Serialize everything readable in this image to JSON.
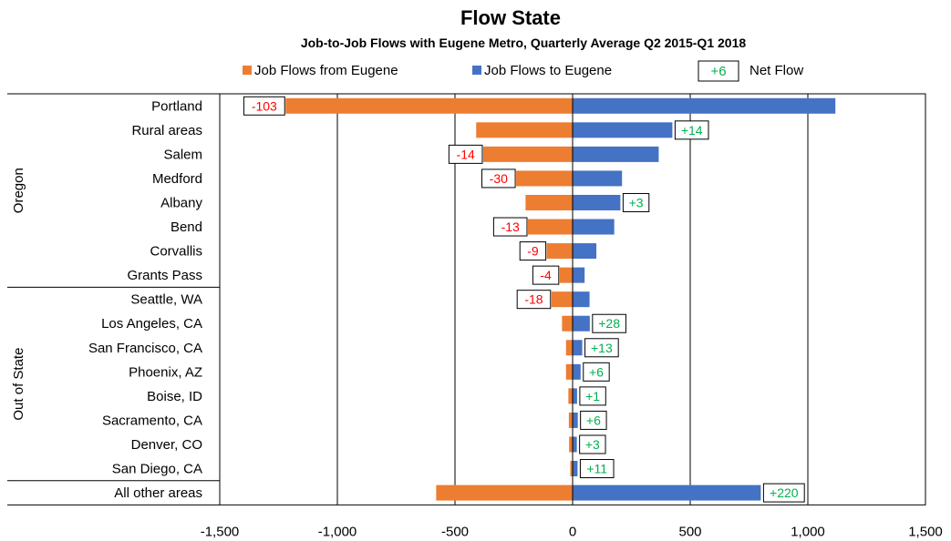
{
  "chart_data": {
    "type": "bar",
    "orientation": "horizontal",
    "title": "Flow State",
    "subtitle": "Job-to-Job  Flows with Eugene Metro, Quarterly Average Q2 2015-Q1 2018",
    "xlim": [
      -1500,
      1500
    ],
    "xticks": [
      -1500,
      -1000,
      -500,
      0,
      500,
      1000,
      1500
    ],
    "xtick_labels": [
      "-1,500",
      "-1,000",
      "-500",
      "0",
      "500",
      "1,000",
      "1,500"
    ],
    "grid": "vertical",
    "legend": {
      "placement": "top",
      "entries": [
        {
          "label": "Job Flows from Eugene",
          "color": "#ED7D31"
        },
        {
          "label": "Job Flows to Eugene",
          "color": "#4472C4"
        },
        {
          "label": "Net Flow",
          "sample": "+6",
          "color": "#00B050"
        }
      ]
    },
    "groups": [
      {
        "name": "Oregon",
        "categories": [
          "Portland",
          "Rural areas",
          "Salem",
          "Medford",
          "Albany",
          "Bend",
          "Corvallis",
          "Grants Pass"
        ]
      },
      {
        "name": "Out of State",
        "categories": [
          "Seattle, WA",
          "Los Angeles, CA",
          "San Francisco, CA",
          "Phoenix, AZ",
          "Boise, ID",
          "Sacramento, CA",
          "Denver, CO",
          "San Diego, CA"
        ]
      },
      {
        "name": "",
        "categories": [
          "All other areas"
        ]
      }
    ],
    "categories": [
      "Portland",
      "Rural areas",
      "Salem",
      "Medford",
      "Albany",
      "Bend",
      "Corvallis",
      "Grants Pass",
      "Seattle, WA",
      "Los Angeles, CA",
      "San Francisco, CA",
      "Phoenix, AZ",
      "Boise, ID",
      "Sacramento, CA",
      "Denver, CO",
      "San Diego, CA",
      "All other areas"
    ],
    "series": [
      {
        "name": "Job Flows from Eugene",
        "color": "#ED7D31",
        "values": [
          -1220,
          -410,
          -380,
          -240,
          -200,
          -190,
          -110,
          -55,
          -90,
          -45,
          -28,
          -28,
          -18,
          -16,
          -15,
          -10,
          -580
        ]
      },
      {
        "name": "Job Flows to Eugene",
        "color": "#4472C4",
        "values": [
          1117,
          424,
          366,
          210,
          203,
          177,
          101,
          51,
          72,
          73,
          41,
          34,
          19,
          22,
          18,
          21,
          800
        ]
      }
    ],
    "net_flow": {
      "name": "Net Flow",
      "values": [
        "-103",
        "+14",
        "-14",
        "-30",
        "+3",
        "-13",
        "-9",
        "-4",
        "-18",
        "+28",
        "+13",
        "+6",
        "+1",
        "+6",
        "+3",
        "+11",
        "+220"
      ],
      "positive_color": "#00B050",
      "negative_color": "#FF0000"
    }
  }
}
